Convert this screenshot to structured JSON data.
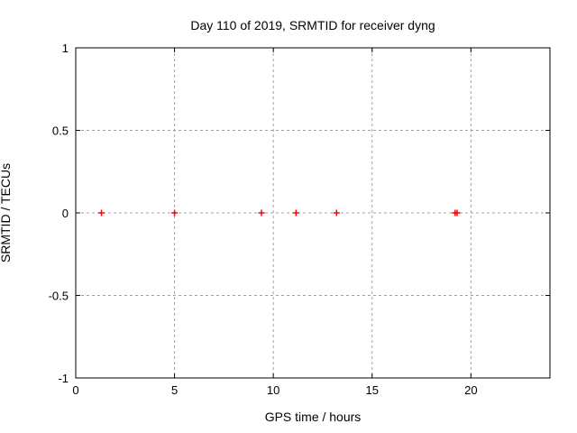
{
  "chart_data": {
    "type": "scatter",
    "title": "Day 110 of 2019, SRMTID for receiver dyng",
    "xlabel": "GPS time / hours",
    "ylabel": "SRMTID / TECUs",
    "xlim": [
      0,
      24
    ],
    "ylim": [
      -1,
      1
    ],
    "xticks": {
      "values": [
        0,
        5,
        10,
        15,
        20
      ],
      "labels": [
        "0",
        "5",
        "10",
        "15",
        "20"
      ]
    },
    "yticks": {
      "values": [
        -1,
        -0.5,
        0,
        0.5,
        1
      ],
      "labels": [
        "-1",
        "-0.5",
        "0",
        "0.5",
        "1"
      ]
    },
    "grid": true,
    "legend": "none",
    "marker": "plus",
    "colors": {
      "marker": "#ff0000",
      "grid": "#a0a0a0",
      "axis": "#000000",
      "background": "#ffffff"
    },
    "series": [
      {
        "name": "SRMTID",
        "x": [
          1.3,
          5.0,
          9.4,
          11.15,
          13.2,
          19.2,
          19.3
        ],
        "y": [
          0,
          0,
          0,
          0,
          0,
          0,
          0
        ]
      }
    ]
  }
}
